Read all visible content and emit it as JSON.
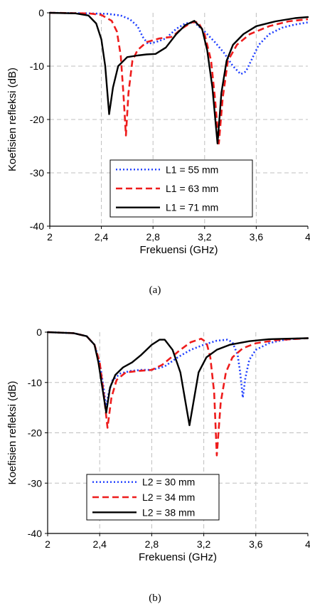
{
  "chart_data": [
    {
      "type": "line",
      "caption": "(a)",
      "xlabel": "Frekuensi (GHz)",
      "ylabel": "Koefisien refleksi (dB)",
      "xlim": [
        2,
        4
      ],
      "ylim": [
        -40,
        0
      ],
      "xticks": [
        "2",
        "2,4",
        "2,8",
        "3,2",
        "3,6",
        "4"
      ],
      "yticks": [
        "0",
        "-10",
        "-20",
        "-30",
        "-40"
      ],
      "grid": true,
      "legend_position": "bottom-center",
      "series": [
        {
          "name": "L1 = 55 mm",
          "color": "#1f3fff",
          "style": "dotted",
          "points": [
            [
              2.0,
              0
            ],
            [
              2.3,
              -0.1
            ],
            [
              2.45,
              -0.2
            ],
            [
              2.55,
              -0.5
            ],
            [
              2.62,
              -1.2
            ],
            [
              2.68,
              -2.5
            ],
            [
              2.72,
              -4.5
            ],
            [
              2.76,
              -5.8
            ],
            [
              2.82,
              -5.5
            ],
            [
              2.9,
              -4.8
            ],
            [
              2.98,
              -3.0
            ],
            [
              3.05,
              -2.0
            ],
            [
              3.12,
              -1.8
            ],
            [
              3.2,
              -3.5
            ],
            [
              3.28,
              -5.5
            ],
            [
              3.35,
              -7.5
            ],
            [
              3.42,
              -10.0
            ],
            [
              3.48,
              -11.5
            ],
            [
              3.52,
              -11.0
            ],
            [
              3.56,
              -9.0
            ],
            [
              3.62,
              -6.0
            ],
            [
              3.7,
              -4.0
            ],
            [
              3.8,
              -2.8
            ],
            [
              3.9,
              -2.2
            ],
            [
              4.0,
              -1.8
            ]
          ]
        },
        {
          "name": "L1 = 63 mm",
          "color": "#ee1c1c",
          "style": "dashed",
          "points": [
            [
              2.0,
              0
            ],
            [
              2.3,
              -0.1
            ],
            [
              2.4,
              -0.4
            ],
            [
              2.48,
              -1.5
            ],
            [
              2.52,
              -3.5
            ],
            [
              2.55,
              -8.0
            ],
            [
              2.57,
              -15.0
            ],
            [
              2.59,
              -23.0
            ],
            [
              2.61,
              -15.0
            ],
            [
              2.64,
              -9.0
            ],
            [
              2.68,
              -7.0
            ],
            [
              2.75,
              -5.5
            ],
            [
              2.85,
              -4.8
            ],
            [
              2.95,
              -4.5
            ],
            [
              3.02,
              -3.0
            ],
            [
              3.1,
              -1.8
            ],
            [
              3.15,
              -1.7
            ],
            [
              3.2,
              -4.0
            ],
            [
              3.25,
              -9.0
            ],
            [
              3.28,
              -16.0
            ],
            [
              3.31,
              -24.5
            ],
            [
              3.34,
              -16.0
            ],
            [
              3.38,
              -9.0
            ],
            [
              3.45,
              -6.0
            ],
            [
              3.55,
              -4.0
            ],
            [
              3.7,
              -2.5
            ],
            [
              3.85,
              -1.6
            ],
            [
              4.0,
              -1.2
            ]
          ]
        },
        {
          "name": "L1 = 71 mm",
          "color": "#000000",
          "style": "solid",
          "points": [
            [
              2.0,
              0
            ],
            [
              2.2,
              -0.1
            ],
            [
              2.3,
              -0.5
            ],
            [
              2.36,
              -2.0
            ],
            [
              2.4,
              -5.0
            ],
            [
              2.43,
              -10.0
            ],
            [
              2.46,
              -19.0
            ],
            [
              2.49,
              -14.0
            ],
            [
              2.53,
              -10.0
            ],
            [
              2.6,
              -8.3
            ],
            [
              2.68,
              -8.0
            ],
            [
              2.75,
              -7.8
            ],
            [
              2.82,
              -7.7
            ],
            [
              2.9,
              -6.5
            ],
            [
              2.98,
              -4.0
            ],
            [
              3.05,
              -2.3
            ],
            [
              3.12,
              -1.5
            ],
            [
              3.18,
              -3.0
            ],
            [
              3.22,
              -7.0
            ],
            [
              3.26,
              -14.0
            ],
            [
              3.3,
              -24.5
            ],
            [
              3.33,
              -15.0
            ],
            [
              3.37,
              -9.0
            ],
            [
              3.42,
              -6.0
            ],
            [
              3.5,
              -4.0
            ],
            [
              3.6,
              -2.5
            ],
            [
              3.75,
              -1.6
            ],
            [
              3.9,
              -1.0
            ],
            [
              4.0,
              -0.8
            ]
          ]
        }
      ]
    },
    {
      "type": "line",
      "caption": "(b)",
      "xlabel": "Frekuensi (GHz)",
      "ylabel": "Koefisien refleksi (dB)",
      "xlim": [
        2,
        4
      ],
      "ylim": [
        -40,
        0
      ],
      "xticks": [
        "2",
        "2,4",
        "2,8",
        "3,2",
        "3,6",
        "4"
      ],
      "yticks": [
        "0",
        "-10",
        "-20",
        "-30",
        "-40"
      ],
      "grid": true,
      "legend_position": "bottom-left",
      "series": [
        {
          "name": "L2 = 30 mm",
          "color": "#1f3fff",
          "style": "dotted",
          "points": [
            [
              2.0,
              0
            ],
            [
              2.2,
              -0.2
            ],
            [
              2.3,
              -0.8
            ],
            [
              2.36,
              -2.5
            ],
            [
              2.4,
              -6.0
            ],
            [
              2.43,
              -11.0
            ],
            [
              2.45,
              -15.0
            ],
            [
              2.47,
              -12.0
            ],
            [
              2.5,
              -9.5
            ],
            [
              2.56,
              -8.2
            ],
            [
              2.64,
              -7.7
            ],
            [
              2.72,
              -7.5
            ],
            [
              2.8,
              -7.5
            ],
            [
              2.9,
              -6.8
            ],
            [
              3.0,
              -5.0
            ],
            [
              3.1,
              -3.5
            ],
            [
              3.2,
              -2.5
            ],
            [
              3.3,
              -1.7
            ],
            [
              3.38,
              -1.5
            ],
            [
              3.42,
              -2.0
            ],
            [
              3.46,
              -4.5
            ],
            [
              3.48,
              -8.0
            ],
            [
              3.5,
              -13.0
            ],
            [
              3.52,
              -9.0
            ],
            [
              3.55,
              -5.5
            ],
            [
              3.6,
              -3.5
            ],
            [
              3.7,
              -2.2
            ],
            [
              3.8,
              -1.6
            ],
            [
              3.9,
              -1.3
            ],
            [
              4.0,
              -1.2
            ]
          ]
        },
        {
          "name": "L2 = 34 mm",
          "color": "#ee1c1c",
          "style": "dashed",
          "points": [
            [
              2.0,
              0
            ],
            [
              2.2,
              -0.2
            ],
            [
              2.3,
              -0.8
            ],
            [
              2.36,
              -2.5
            ],
            [
              2.4,
              -6.0
            ],
            [
              2.43,
              -12.0
            ],
            [
              2.46,
              -19.0
            ],
            [
              2.49,
              -13.0
            ],
            [
              2.53,
              -9.5
            ],
            [
              2.6,
              -8.0
            ],
            [
              2.7,
              -7.7
            ],
            [
              2.8,
              -7.5
            ],
            [
              2.88,
              -6.5
            ],
            [
              2.95,
              -5.0
            ],
            [
              3.02,
              -3.5
            ],
            [
              3.1,
              -2.0
            ],
            [
              3.18,
              -1.3
            ],
            [
              3.22,
              -2.0
            ],
            [
              3.25,
              -5.0
            ],
            [
              3.28,
              -12.0
            ],
            [
              3.3,
              -24.5
            ],
            [
              3.33,
              -14.0
            ],
            [
              3.37,
              -8.0
            ],
            [
              3.42,
              -5.0
            ],
            [
              3.5,
              -3.2
            ],
            [
              3.6,
              -2.2
            ],
            [
              3.75,
              -1.6
            ],
            [
              4.0,
              -1.2
            ]
          ]
        },
        {
          "name": "L2 = 38 mm",
          "color": "#000000",
          "style": "solid",
          "points": [
            [
              2.0,
              0
            ],
            [
              2.2,
              -0.2
            ],
            [
              2.3,
              -0.8
            ],
            [
              2.36,
              -2.5
            ],
            [
              2.39,
              -6.0
            ],
            [
              2.42,
              -11.0
            ],
            [
              2.45,
              -16.0
            ],
            [
              2.48,
              -11.0
            ],
            [
              2.52,
              -8.5
            ],
            [
              2.58,
              -7.0
            ],
            [
              2.65,
              -6.0
            ],
            [
              2.72,
              -4.5
            ],
            [
              2.8,
              -2.5
            ],
            [
              2.86,
              -1.5
            ],
            [
              2.9,
              -1.5
            ],
            [
              2.96,
              -3.5
            ],
            [
              3.02,
              -8.0
            ],
            [
              3.06,
              -14.0
            ],
            [
              3.09,
              -18.5
            ],
            [
              3.12,
              -14.0
            ],
            [
              3.16,
              -8.0
            ],
            [
              3.22,
              -5.0
            ],
            [
              3.3,
              -3.5
            ],
            [
              3.4,
              -2.5
            ],
            [
              3.55,
              -1.8
            ],
            [
              3.7,
              -1.4
            ],
            [
              4.0,
              -1.2
            ]
          ]
        }
      ]
    }
  ]
}
